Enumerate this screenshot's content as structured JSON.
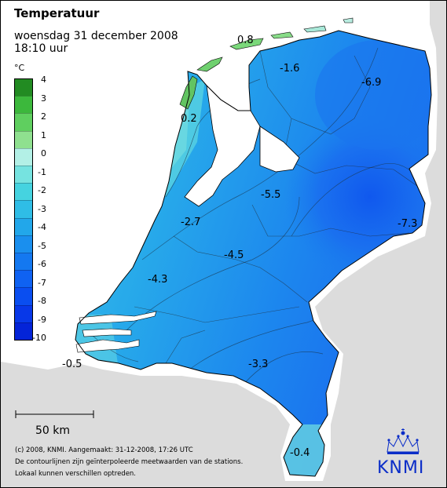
{
  "header": {
    "title": "Temperatuur",
    "date": "woensdag 31 december 2008",
    "time": "18:10 uur"
  },
  "legend": {
    "unit": "°C",
    "ticks": [
      "4",
      "3",
      "2",
      "1",
      "0",
      "-1",
      "-2",
      "-3",
      "-4",
      "-5",
      "-6",
      "-7",
      "-8",
      "-9",
      "-10"
    ],
    "colors": [
      "#228b22",
      "#3cb83c",
      "#5fcf5f",
      "#8fe08f",
      "#b3f0e6",
      "#76e3e0",
      "#45d3e0",
      "#2fbde6",
      "#22a7ea",
      "#1a8fee",
      "#1478f0",
      "#0f62f2",
      "#0a4ef0",
      "#0838e8",
      "#0424d8"
    ]
  },
  "scale": {
    "label": "50 km"
  },
  "labels": {
    "v1": "0.8",
    "v2": "-1.6",
    "v3": "-6.9",
    "v4": "0.2",
    "v5": "-5.5",
    "v6": "-2.7",
    "v7": "-7.3",
    "v8": "-4.5",
    "v9": "-4.3",
    "v10": "-3.3",
    "v11": "-0.5",
    "v12": "-0.4"
  },
  "credits": {
    "line1": "(c) 2008, KNMI. Aangemaakt: 31-12-2008, 17:26 UTC",
    "line2": "De contourlijnen zijn geïnterpoleerde meetwaarden van de stations.",
    "line3": "Lokaal kunnen verschillen optreden."
  },
  "logo": {
    "text": "KNMI"
  },
  "colors": {
    "background": "#dcdcdc",
    "water": "#ffffff",
    "accent": "#0a2dc8"
  }
}
